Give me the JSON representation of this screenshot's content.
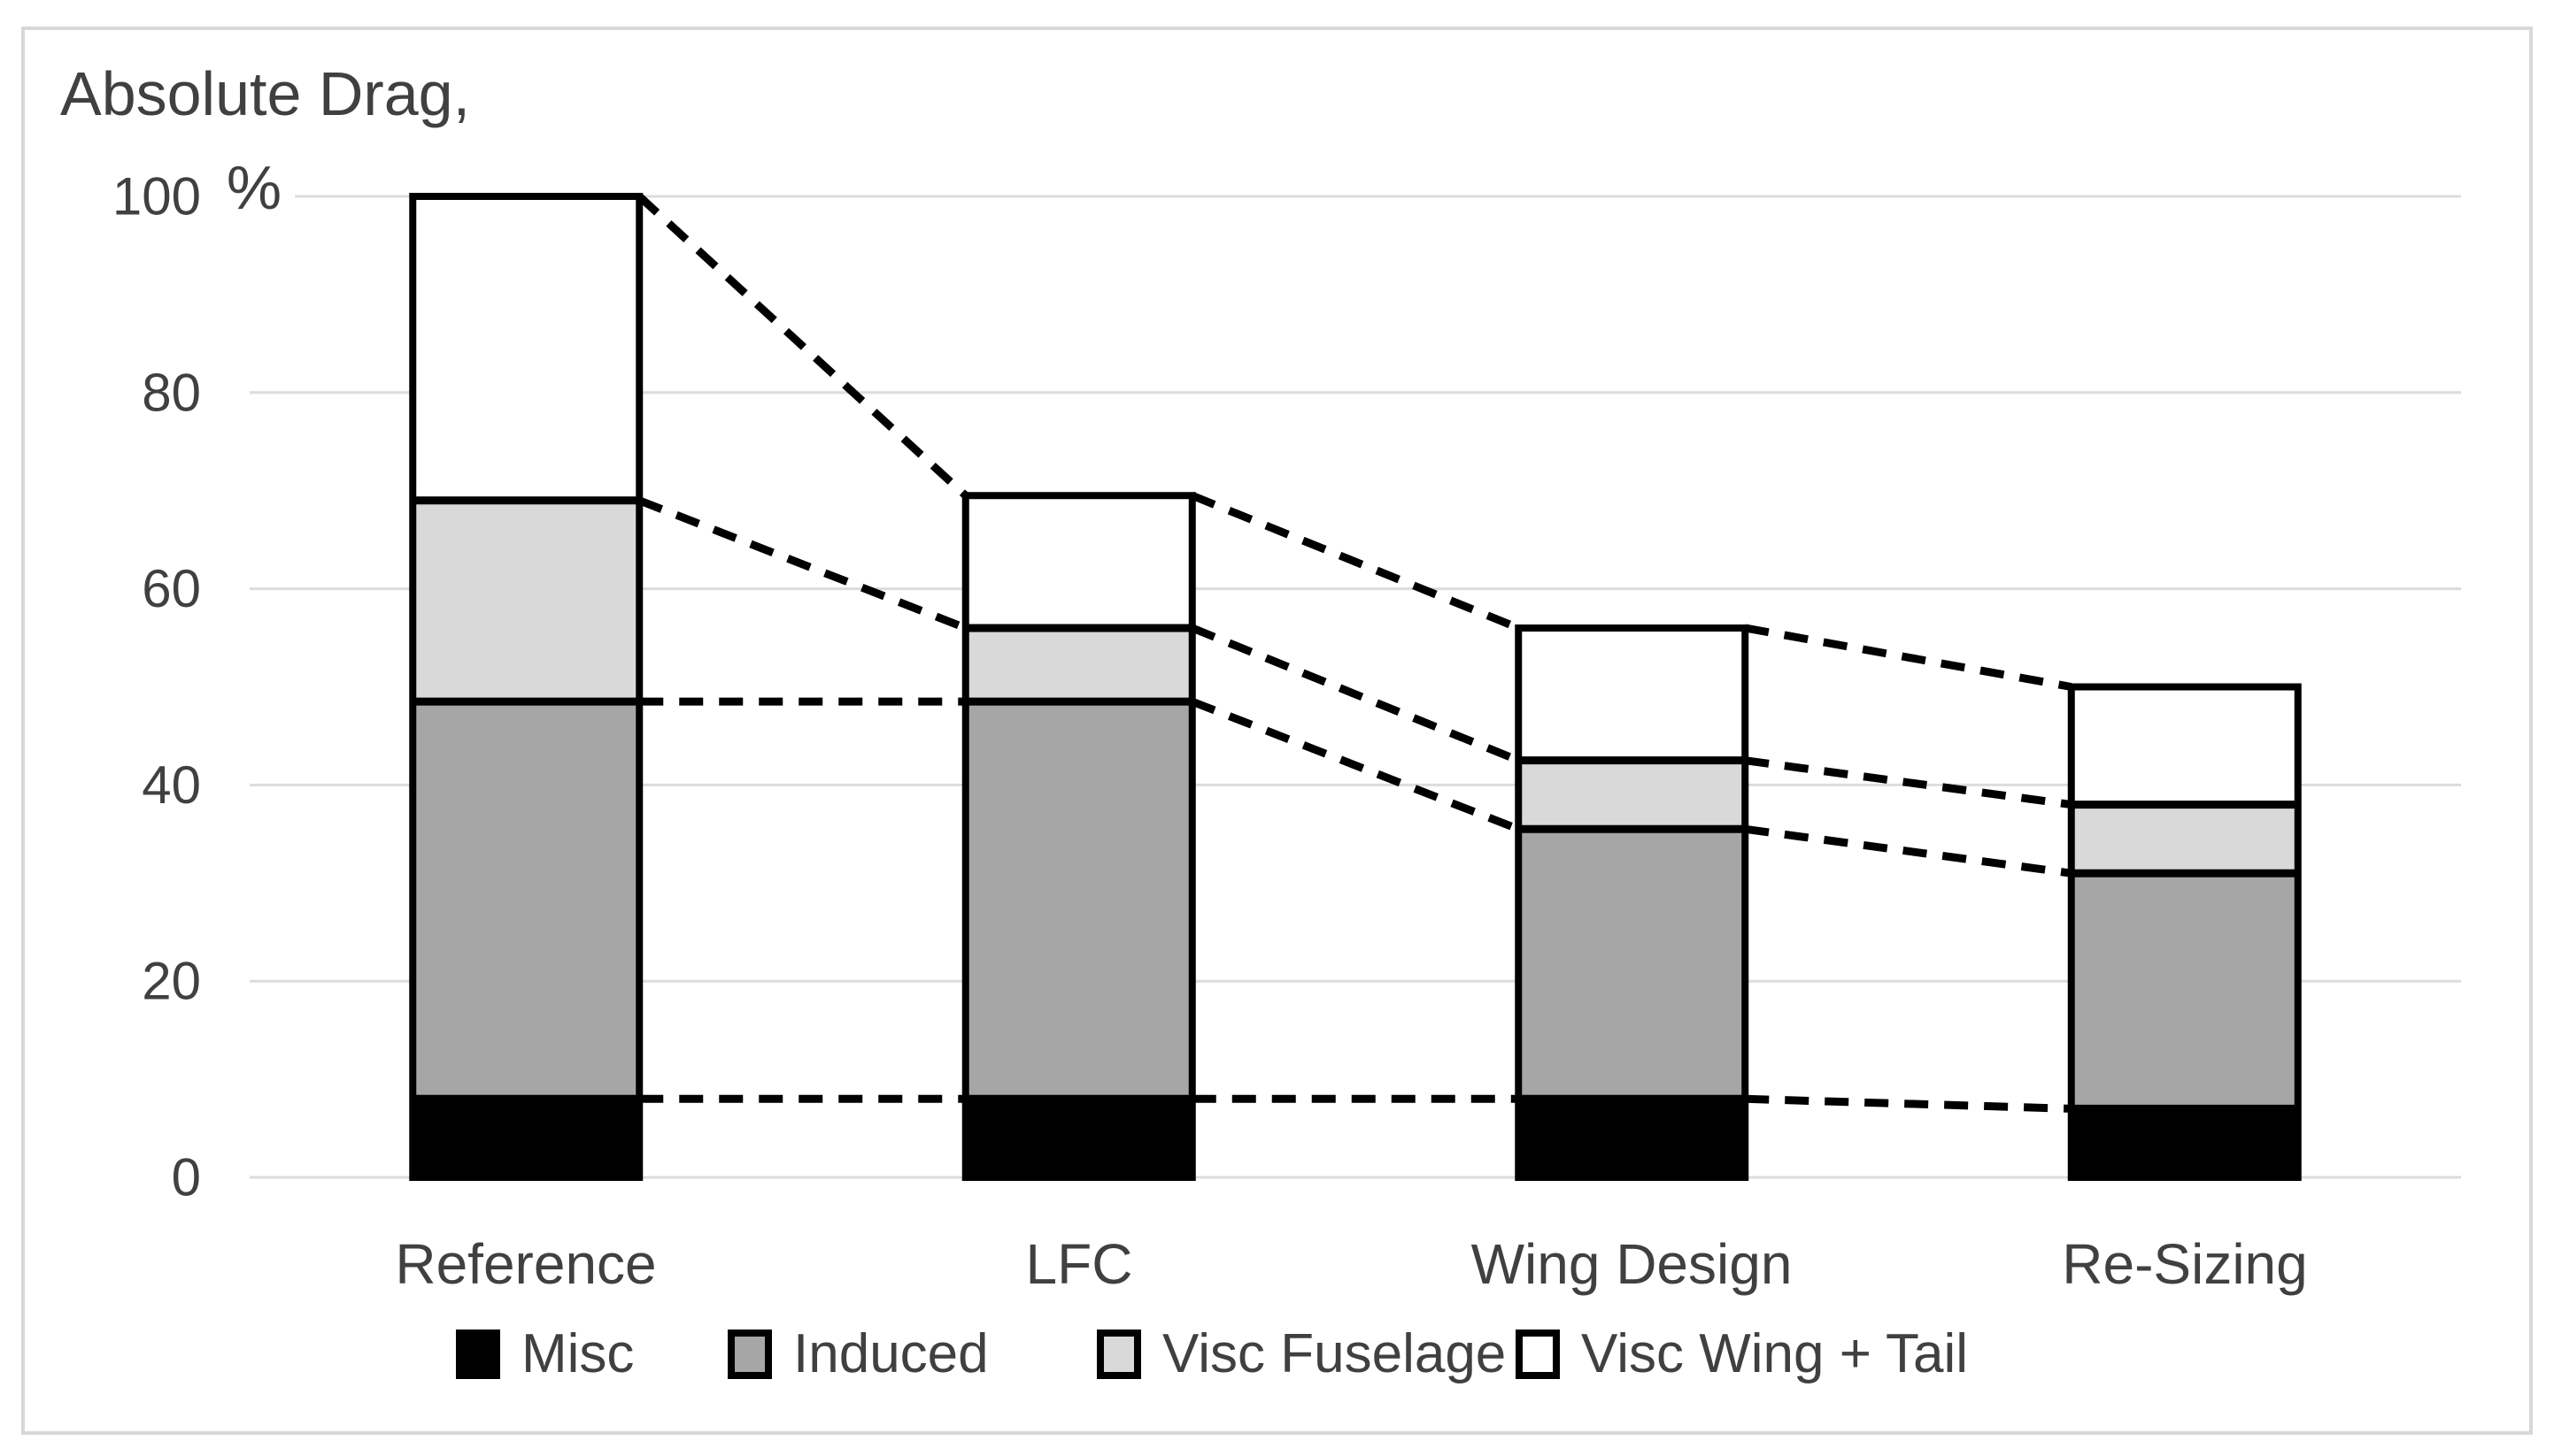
{
  "y_axis": {
    "label_line1": "Absolute Drag,",
    "label_line2": "%"
  },
  "chart_data": {
    "type": "bar",
    "subtype": "stacked",
    "title": "Absolute Drag, %",
    "ylabel": "Absolute Drag, %",
    "xlabel": "",
    "categories": [
      "Reference",
      "LFC",
      "Wing Design",
      "Re-Sizing"
    ],
    "series": [
      {
        "name": "Misc",
        "color": "#000000",
        "values": [
          8,
          8,
          8,
          7
        ]
      },
      {
        "name": "Induced",
        "color": "#a6a6a6",
        "values": [
          40.5,
          40.5,
          27.5,
          24
        ]
      },
      {
        "name": "Visc Fuselage",
        "color": "#d9d9d9",
        "values": [
          20.5,
          7.5,
          7,
          7
        ]
      },
      {
        "name": "Visc Wing + Tail",
        "color": "#ffffff",
        "values": [
          31,
          13.5,
          13.5,
          12
        ]
      }
    ],
    "bar_totals": [
      100,
      69.5,
      56,
      50
    ],
    "cumulative_levels": [
      [
        8,
        48.5,
        69,
        100
      ],
      [
        8,
        48.5,
        56,
        69.5
      ],
      [
        8,
        35.5,
        42.5,
        56
      ],
      [
        7,
        31,
        38,
        50
      ]
    ],
    "connectors": "dashed lines join each stack boundary of a bar to the matching boundary of the next bar",
    "ylim": [
      0,
      100
    ],
    "yticks": [
      0,
      20,
      40,
      60,
      80,
      100
    ],
    "grid": "horizontal",
    "legend_position": "bottom",
    "bar_border_color": "#000000",
    "gridline_color": "#dcdcdc",
    "text_color": "#404040",
    "frame_color": "#d8d8d8"
  }
}
